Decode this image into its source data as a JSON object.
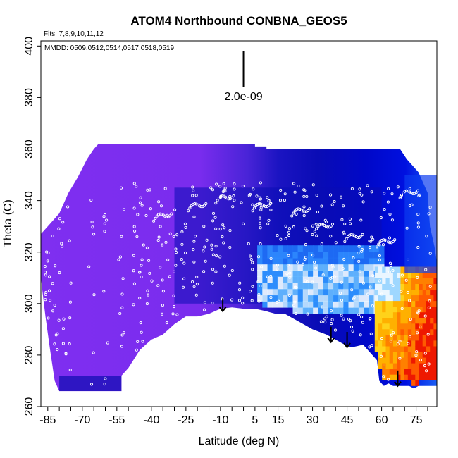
{
  "chart_data": {
    "type": "heatmap",
    "title": "ATOM4 Northbound CONBNA_GEOS5",
    "flights_label": "Flts: 7,8,9,10,11,12",
    "dates_label": "MMDD: 0509,0512,0514,0517,0518,0519",
    "xlabel": "Latitude (deg N)",
    "ylabel": "Theta (C)",
    "xlim": [
      -88,
      84
    ],
    "ylim": [
      260,
      402
    ],
    "x_ticks": [
      -85,
      -70,
      -55,
      -40,
      -25,
      -10,
      5,
      15,
      30,
      45,
      60,
      75
    ],
    "y_ticks": [
      260,
      280,
      300,
      320,
      340,
      360,
      380,
      400
    ],
    "scale_bar": {
      "label": "2.0e-09",
      "x": 0,
      "y_top": 398,
      "y_bottom": 384
    },
    "colormap": [
      "#7f2ff0",
      "#3b1fd0",
      "#0b0bb0",
      "#0000d8",
      "#1a5ef5",
      "#2ea0ff",
      "#9ed7ff",
      "#eaf6ff",
      "#ffd21a",
      "#ff9d00",
      "#ff5a00",
      "#ee1800"
    ],
    "arrows": [
      {
        "x": -9,
        "y_from": 302,
        "y_to": 297
      },
      {
        "x": 38,
        "y_from": 291,
        "y_to": 285
      },
      {
        "x": 45,
        "y_from": 289,
        "y_to": 283
      },
      {
        "x": 67,
        "y_from": 274,
        "y_to": 268
      }
    ]
  }
}
